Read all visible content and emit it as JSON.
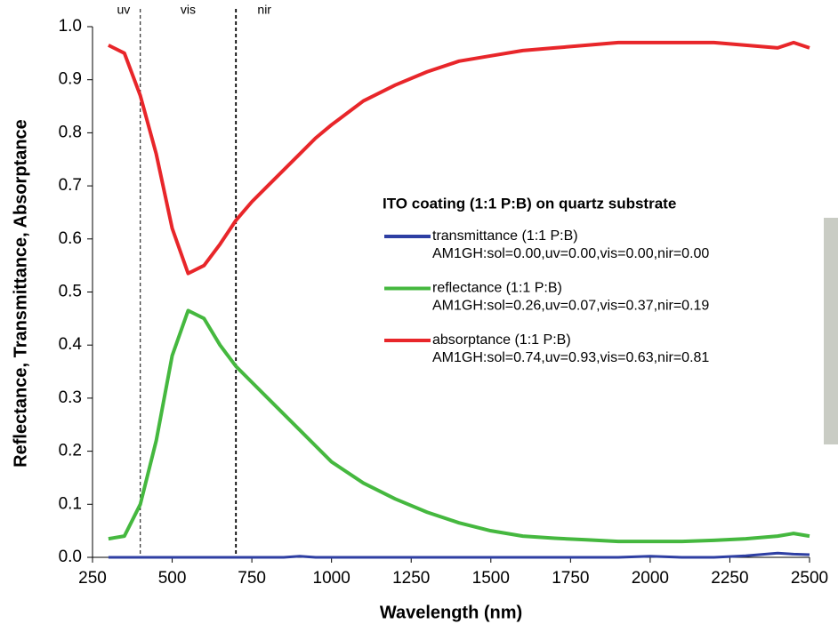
{
  "chart_data": {
    "type": "line",
    "xlabel": "Wavelength (nm)",
    "ylabel": "Reflectance, Transmittance, Absorptance",
    "legend_title": "ITO coating (1:1 P:B) on quartz substrate",
    "x": [
      300,
      350,
      400,
      450,
      500,
      550,
      600,
      650,
      700,
      750,
      800,
      850,
      900,
      950,
      1000,
      1100,
      1200,
      1300,
      1400,
      1500,
      1600,
      1700,
      1800,
      1900,
      2000,
      2100,
      2200,
      2300,
      2400,
      2450,
      2500
    ],
    "series": [
      {
        "name": "transmittance (1:1 P:B)",
        "note": "AM1GH:sol=0.00,uv=0.00,vis=0.00,nir=0.00",
        "color": "#2e3fa3",
        "values": [
          0,
          0,
          0,
          0,
          0,
          0,
          0,
          0,
          0,
          0,
          0,
          0,
          0.002,
          0,
          0,
          0,
          0,
          0,
          0,
          0,
          0,
          0,
          0,
          0,
          0.002,
          0,
          0,
          0.003,
          0.008,
          0.006,
          0.005
        ]
      },
      {
        "name": "reflectance (1:1 P:B)",
        "note": "AM1GH:sol=0.26,uv=0.07,vis=0.37,nir=0.19",
        "color": "#45b83f",
        "values": [
          0.035,
          0.04,
          0.1,
          0.22,
          0.38,
          0.465,
          0.45,
          0.4,
          0.36,
          0.33,
          0.3,
          0.27,
          0.24,
          0.21,
          0.18,
          0.14,
          0.11,
          0.085,
          0.065,
          0.05,
          0.04,
          0.036,
          0.033,
          0.03,
          0.03,
          0.03,
          0.032,
          0.035,
          0.04,
          0.045,
          0.04
        ]
      },
      {
        "name": "absorptance (1:1 P:B)",
        "note": "AM1GH:sol=0.74,uv=0.93,vis=0.63,nir=0.81",
        "color": "#e8262a",
        "values": [
          0.965,
          0.95,
          0.87,
          0.76,
          0.62,
          0.535,
          0.55,
          0.59,
          0.635,
          0.67,
          0.7,
          0.73,
          0.76,
          0.79,
          0.815,
          0.86,
          0.89,
          0.915,
          0.935,
          0.945,
          0.955,
          0.96,
          0.965,
          0.97,
          0.97,
          0.97,
          0.97,
          0.965,
          0.96,
          0.97,
          0.96
        ]
      }
    ],
    "region_lines": [
      400,
      700
    ],
    "region_labels": [
      "uv",
      "vis",
      "nir"
    ],
    "xlim": [
      250,
      2500
    ],
    "xticks": [
      250,
      500,
      750,
      1000,
      1250,
      1500,
      1750,
      2000,
      2250,
      2500
    ],
    "ylim": [
      0,
      1
    ],
    "yticks": [
      {
        "value": 0,
        "label": "0.0"
      },
      0.1,
      0.2,
      0.3,
      0.4,
      0.5,
      0.6,
      0.7,
      0.8,
      0.9,
      {
        "value": 1,
        "label": "1.0"
      }
    ],
    "grid": false
  }
}
